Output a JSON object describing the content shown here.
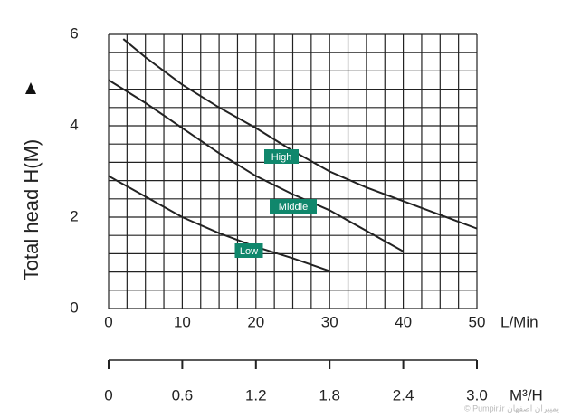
{
  "chart_data": {
    "type": "line",
    "y_label": "Total head H(M)",
    "x_label": "L/Min",
    "x2_label": "M³/H",
    "watermark": "© Pumpir.ir پمپیران اصفهان",
    "xlim": [
      0,
      50
    ],
    "xticks": [
      0,
      10,
      20,
      30,
      40,
      50
    ],
    "ylim": [
      0,
      6
    ],
    "yticks": [
      0,
      2,
      4,
      6
    ],
    "x2lim": [
      0,
      3
    ],
    "x2ticks": [
      0,
      0.6,
      1.2,
      1.8,
      2.4,
      {
        "value": 3,
        "label": "3.0"
      }
    ],
    "grid_x": [
      0,
      2.5,
      5,
      7.5,
      10,
      12.5,
      15,
      17.5,
      20,
      22.5,
      25,
      27.5,
      30,
      32.5,
      35,
      37.5,
      40,
      42.5,
      45,
      47.5,
      50
    ],
    "grid_y": [
      0,
      0.4,
      0.8,
      1.2,
      1.6,
      2,
      2.4,
      2.8,
      3.2,
      3.6,
      4,
      4.4,
      4.8,
      5.2,
      5.6,
      6
    ],
    "grid": true,
    "label_color": "#10876c",
    "series": [
      {
        "name": "High",
        "color": "#222222",
        "x": [
          2,
          5,
          10,
          15,
          20,
          25,
          30,
          35,
          40,
          45,
          50
        ],
        "values": [
          5.9,
          5.5,
          4.9,
          4.4,
          3.95,
          3.45,
          3.0,
          2.65,
          2.35,
          2.05,
          1.75
        ]
      },
      {
        "name": "Middle",
        "color": "#222222",
        "x": [
          0,
          5,
          10,
          15,
          20,
          25,
          30,
          35,
          40
        ],
        "values": [
          5.0,
          4.5,
          3.95,
          3.4,
          2.9,
          2.5,
          2.15,
          1.7,
          1.25
        ]
      },
      {
        "name": "Low",
        "color": "#222222",
        "x": [
          0,
          5,
          10,
          15,
          20,
          25,
          30
        ],
        "values": [
          2.9,
          2.45,
          2.0,
          1.65,
          1.35,
          1.1,
          0.82
        ]
      }
    ]
  }
}
